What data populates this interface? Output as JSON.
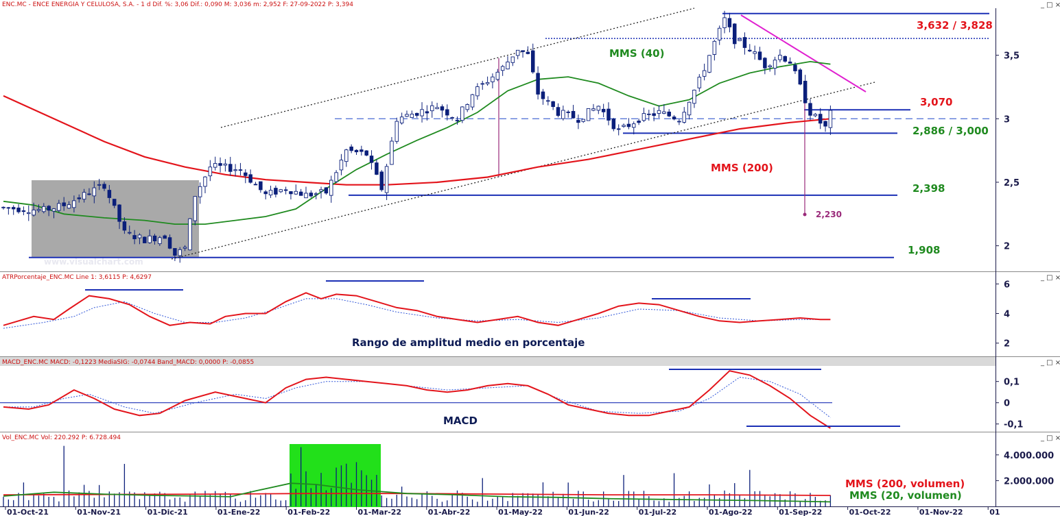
{
  "header": {
    "main": "ENC.MC - ENCE ENERGIA Y CELULOSA, S.A. - 1 d  Dif. %: 3,06  Dif.: 0,090  M: 3,036  m: 2,952  F: 27-09-2022  P: 3,394",
    "atr": "ATRPorcentaje_ENC.MC  Line 1: 3,6115  P: 4,6297",
    "macd": "MACD_ENC.MC  MACD: -0,1223  MediaSIG: -0,0744  Band_MACD: 0,0000  P: -0,0855",
    "vol": "Vol_ENC.MC  Vol: 220.292  P: 6.728.494"
  },
  "window_buttons": "_ □ ×",
  "watermark": "www.visualchart.com",
  "colors": {
    "price_candle": "#0b1f7a",
    "sma200": "#e3141b",
    "sma40": "#1f8a1f",
    "support_lines": "#1a2fb5",
    "downtrend": "#e020d0",
    "target": "#9a2a7a",
    "atr_signal": "#2e54d8",
    "volume_highlight": "#22e01a",
    "gray_box": "#a9a9a9"
  },
  "chart_data": [
    {
      "type": "candlestick",
      "title": "ENC.MC - ENCE ENERGIA Y CELULOSA, S.A. - 1 d",
      "x_tick_labels": [
        "01-Oct-21",
        "01-Nov-21",
        "01-Dic-21",
        "01-Ene-22",
        "01-Feb-22",
        "01-Mar-22",
        "01-Abr-22",
        "01-May-22",
        "01-Jun-22",
        "01-Jul-22",
        "01-Ago-22",
        "01-Sep-22",
        "01-Oct-22",
        "01-Nov-22",
        "01"
      ],
      "y_ticks": [
        "2",
        "2,5",
        "3",
        "3,5"
      ],
      "ylim": [
        1.82,
        3.87
      ],
      "price_path": [
        [
          0,
          2.3
        ],
        [
          8,
          2.28
        ],
        [
          12,
          2.32
        ],
        [
          16,
          2.4
        ],
        [
          20,
          2.48
        ],
        [
          24,
          2.1
        ],
        [
          28,
          2.05
        ],
        [
          32,
          2.08
        ],
        [
          34,
          1.93
        ],
        [
          36,
          1.98
        ],
        [
          38,
          2.4
        ],
        [
          41,
          2.62
        ],
        [
          43,
          2.62
        ],
        [
          47,
          2.6
        ],
        [
          52,
          2.4
        ],
        [
          56,
          2.45
        ],
        [
          60,
          2.4
        ],
        [
          64,
          2.42
        ],
        [
          68,
          2.75
        ],
        [
          72,
          2.72
        ],
        [
          75,
          2.45
        ],
        [
          78,
          3.0
        ],
        [
          82,
          3.05
        ],
        [
          86,
          3.1
        ],
        [
          90,
          3.0
        ],
        [
          93,
          3.2
        ],
        [
          96,
          3.3
        ],
        [
          99,
          3.4
        ],
        [
          102,
          3.55
        ],
        [
          104,
          3.5
        ],
        [
          106,
          3.2
        ],
        [
          110,
          3.05
        ],
        [
          114,
          3.0
        ],
        [
          118,
          3.1
        ],
        [
          122,
          2.9
        ],
        [
          126,
          3.0
        ],
        [
          130,
          3.05
        ],
        [
          134,
          3.0
        ],
        [
          138,
          3.3
        ],
        [
          141,
          3.6
        ],
        [
          143,
          3.78
        ],
        [
          145,
          3.62
        ],
        [
          148,
          3.55
        ],
        [
          151,
          3.42
        ],
        [
          154,
          3.5
        ],
        [
          156,
          3.45
        ],
        [
          158,
          3.25
        ],
        [
          160,
          3.05
        ],
        [
          163,
          2.93
        ],
        [
          164,
          3.04
        ]
      ],
      "sma200_path": [
        [
          0,
          3.18
        ],
        [
          10,
          3.0
        ],
        [
          20,
          2.82
        ],
        [
          28,
          2.7
        ],
        [
          36,
          2.62
        ],
        [
          44,
          2.56
        ],
        [
          52,
          2.52
        ],
        [
          60,
          2.5
        ],
        [
          68,
          2.48
        ],
        [
          76,
          2.48
        ],
        [
          86,
          2.5
        ],
        [
          96,
          2.54
        ],
        [
          106,
          2.62
        ],
        [
          116,
          2.68
        ],
        [
          126,
          2.76
        ],
        [
          136,
          2.84
        ],
        [
          146,
          2.92
        ],
        [
          156,
          2.97
        ],
        [
          164,
          3.0
        ]
      ],
      "sma40_path": [
        [
          0,
          2.35
        ],
        [
          6,
          2.32
        ],
        [
          12,
          2.25
        ],
        [
          20,
          2.22
        ],
        [
          28,
          2.2
        ],
        [
          34,
          2.17
        ],
        [
          40,
          2.17
        ],
        [
          46,
          2.2
        ],
        [
          52,
          2.23
        ],
        [
          58,
          2.29
        ],
        [
          64,
          2.45
        ],
        [
          70,
          2.6
        ],
        [
          76,
          2.72
        ],
        [
          82,
          2.83
        ],
        [
          88,
          2.93
        ],
        [
          94,
          3.05
        ],
        [
          100,
          3.22
        ],
        [
          106,
          3.31
        ],
        [
          112,
          3.33
        ],
        [
          118,
          3.28
        ],
        [
          124,
          3.18
        ],
        [
          130,
          3.1
        ],
        [
          136,
          3.15
        ],
        [
          142,
          3.28
        ],
        [
          148,
          3.36
        ],
        [
          154,
          3.41
        ],
        [
          160,
          3.45
        ],
        [
          164,
          3.43
        ]
      ],
      "series": [
        {
          "name": "MMS (40)"
        },
        {
          "name": "MMS (200)"
        }
      ],
      "levels": [
        {
          "label": "3,632 / 3,828",
          "values": [
            3.632,
            3.828
          ]
        },
        {
          "label": "3,070",
          "values": [
            3.07
          ]
        },
        {
          "label": "2,886 / 3,000",
          "values": [
            2.886,
            3.0
          ]
        },
        {
          "label": "2,398",
          "values": [
            2.398
          ]
        },
        {
          "label": "1,908",
          "values": [
            1.908
          ]
        }
      ],
      "target_label": "2,230",
      "target_value": 2.23,
      "grid": false
    },
    {
      "type": "line",
      "name": "ATRPorcentaje_ENC.MC",
      "label": "Rango de amplitud medio en porcentaje",
      "y_ticks": [
        "2",
        "4",
        "6"
      ],
      "ylim": [
        1.2,
        6.2
      ],
      "line_path": [
        [
          0,
          3.2
        ],
        [
          6,
          3.8
        ],
        [
          10,
          3.6
        ],
        [
          13,
          4.3
        ],
        [
          17,
          5.2
        ],
        [
          21,
          5.0
        ],
        [
          25,
          4.6
        ],
        [
          29,
          3.8
        ],
        [
          33,
          3.2
        ],
        [
          37,
          3.4
        ],
        [
          41,
          3.3
        ],
        [
          44,
          3.8
        ],
        [
          48,
          4.0
        ],
        [
          52,
          4.0
        ],
        [
          56,
          4.8
        ],
        [
          60,
          5.4
        ],
        [
          63,
          5.0
        ],
        [
          66,
          5.3
        ],
        [
          70,
          5.2
        ],
        [
          74,
          4.8
        ],
        [
          78,
          4.4
        ],
        [
          82,
          4.2
        ],
        [
          86,
          3.8
        ],
        [
          90,
          3.6
        ],
        [
          94,
          3.4
        ],
        [
          98,
          3.6
        ],
        [
          102,
          3.8
        ],
        [
          106,
          3.4
        ],
        [
          110,
          3.2
        ],
        [
          114,
          3.6
        ],
        [
          118,
          4.0
        ],
        [
          122,
          4.5
        ],
        [
          126,
          4.7
        ],
        [
          130,
          4.6
        ],
        [
          134,
          4.2
        ],
        [
          138,
          3.8
        ],
        [
          142,
          3.5
        ],
        [
          146,
          3.4
        ],
        [
          150,
          3.5
        ],
        [
          154,
          3.6
        ],
        [
          158,
          3.7
        ],
        [
          162,
          3.6
        ],
        [
          164,
          3.6
        ]
      ],
      "signal_path": [
        [
          0,
          3.0
        ],
        [
          8,
          3.4
        ],
        [
          14,
          3.8
        ],
        [
          18,
          4.4
        ],
        [
          24,
          4.8
        ],
        [
          30,
          4.0
        ],
        [
          36,
          3.4
        ],
        [
          42,
          3.4
        ],
        [
          48,
          3.7
        ],
        [
          54,
          4.3
        ],
        [
          60,
          5.0
        ],
        [
          66,
          5.0
        ],
        [
          72,
          4.6
        ],
        [
          78,
          4.1
        ],
        [
          86,
          3.7
        ],
        [
          94,
          3.5
        ],
        [
          102,
          3.6
        ],
        [
          110,
          3.4
        ],
        [
          118,
          3.7
        ],
        [
          126,
          4.3
        ],
        [
          134,
          4.2
        ],
        [
          142,
          3.7
        ],
        [
          150,
          3.5
        ],
        [
          158,
          3.6
        ],
        [
          164,
          3.6
        ]
      ]
    },
    {
      "type": "line",
      "name": "MACD_ENC.MC",
      "label": "MACD",
      "y_ticks": [
        "0,1",
        "0",
        "-0,1"
      ],
      "ylim": [
        -0.13,
        0.17
      ],
      "line_path": [
        [
          0,
          -0.02
        ],
        [
          5,
          -0.03
        ],
        [
          9,
          -0.01
        ],
        [
          14,
          0.06
        ],
        [
          18,
          0.02
        ],
        [
          22,
          -0.03
        ],
        [
          27,
          -0.06
        ],
        [
          31,
          -0.05
        ],
        [
          36,
          0.01
        ],
        [
          42,
          0.05
        ],
        [
          48,
          0.02
        ],
        [
          52,
          0.0
        ],
        [
          56,
          0.07
        ],
        [
          60,
          0.11
        ],
        [
          64,
          0.12
        ],
        [
          68,
          0.11
        ],
        [
          72,
          0.1
        ],
        [
          76,
          0.09
        ],
        [
          80,
          0.08
        ],
        [
          84,
          0.06
        ],
        [
          88,
          0.05
        ],
        [
          92,
          0.06
        ],
        [
          96,
          0.08
        ],
        [
          100,
          0.09
        ],
        [
          104,
          0.08
        ],
        [
          108,
          0.04
        ],
        [
          112,
          -0.01
        ],
        [
          116,
          -0.03
        ],
        [
          120,
          -0.05
        ],
        [
          124,
          -0.06
        ],
        [
          128,
          -0.06
        ],
        [
          132,
          -0.04
        ],
        [
          136,
          -0.02
        ],
        [
          140,
          0.06
        ],
        [
          144,
          0.15
        ],
        [
          148,
          0.13
        ],
        [
          152,
          0.08
        ],
        [
          156,
          0.02
        ],
        [
          160,
          -0.06
        ],
        [
          164,
          -0.12
        ]
      ],
      "signal_path": [
        [
          0,
          -0.02
        ],
        [
          6,
          -0.02
        ],
        [
          12,
          0.02
        ],
        [
          17,
          0.04
        ],
        [
          24,
          -0.02
        ],
        [
          30,
          -0.05
        ],
        [
          38,
          0.0
        ],
        [
          46,
          0.04
        ],
        [
          52,
          0.02
        ],
        [
          58,
          0.07
        ],
        [
          64,
          0.1
        ],
        [
          72,
          0.1
        ],
        [
          80,
          0.08
        ],
        [
          88,
          0.06
        ],
        [
          96,
          0.07
        ],
        [
          104,
          0.08
        ],
        [
          110,
          0.02
        ],
        [
          118,
          -0.04
        ],
        [
          126,
          -0.05
        ],
        [
          134,
          -0.04
        ],
        [
          140,
          0.02
        ],
        [
          146,
          0.12
        ],
        [
          152,
          0.1
        ],
        [
          158,
          0.04
        ],
        [
          164,
          -0.07
        ]
      ],
      "zero_line": 0
    },
    {
      "type": "bar",
      "name": "Vol_ENC.MC",
      "y_ticks": [
        "4.000.000",
        "2.000.000"
      ],
      "ylim": [
        0,
        5000000
      ],
      "series": [
        {
          "name": "MMS (200, volumen)"
        },
        {
          "name": "MMS (20, volumen)"
        }
      ],
      "sma200_path": [
        [
          0,
          0.9
        ],
        [
          40,
          0.95
        ],
        [
          60,
          1.0
        ],
        [
          80,
          1.0
        ],
        [
          100,
          0.95
        ],
        [
          120,
          0.9
        ],
        [
          140,
          0.9
        ],
        [
          164,
          0.85
        ]
      ],
      "sma20_path": [
        [
          0,
          0.8
        ],
        [
          10,
          1.1
        ],
        [
          20,
          0.95
        ],
        [
          30,
          0.85
        ],
        [
          40,
          0.8
        ],
        [
          45,
          0.75
        ],
        [
          50,
          1.2
        ],
        [
          57,
          1.8
        ],
        [
          62,
          1.7
        ],
        [
          70,
          1.3
        ],
        [
          80,
          1.0
        ],
        [
          90,
          0.9
        ],
        [
          100,
          0.75
        ],
        [
          110,
          0.7
        ],
        [
          120,
          0.6
        ],
        [
          130,
          0.55
        ],
        [
          140,
          0.5
        ],
        [
          150,
          0.45
        ],
        [
          164,
          0.35
        ]
      ]
    }
  ],
  "annotations": {
    "mms40": "MMS (40)",
    "mms200": "MMS (200)",
    "lvl_top": "3,632 / 3,828",
    "lvl_3070": "3,070",
    "lvl_mid": "2,886 / 3,000",
    "lvl_2398": "2,398",
    "lvl_1908": "1,908",
    "target": "2,230",
    "atr_label": "Rango de amplitud medio en porcentaje",
    "macd_label": "MACD",
    "vol200": "MMS (200, volumen)",
    "vol20": "MMS (20, volumen)"
  }
}
